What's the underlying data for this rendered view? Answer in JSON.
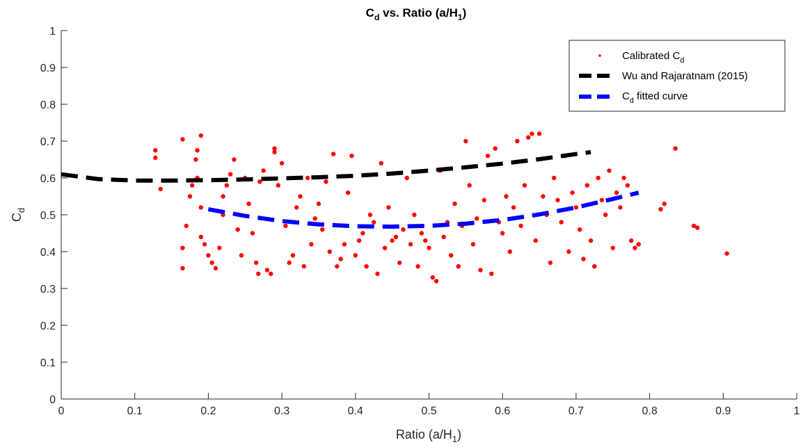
{
  "chart_data": {
    "type": "scatter",
    "title": {
      "main": "C",
      "sub": "d",
      "mid": " vs. Ratio (a/H",
      "sub2": "1",
      "end": ")"
    },
    "xlabel": {
      "main": "Ratio (a/H",
      "sub": "1",
      "end": ")"
    },
    "ylabel": {
      "main": "C",
      "sub": "d"
    },
    "xlim": [
      0,
      1
    ],
    "ylim": [
      0,
      1
    ],
    "xticks": [
      "0",
      "0.1",
      "0.2",
      "0.3",
      "0.4",
      "0.5",
      "0.6",
      "0.7",
      "0.8",
      "0.9",
      "1"
    ],
    "yticks": [
      "0",
      "0.1",
      "0.2",
      "0.3",
      "0.4",
      "0.5",
      "0.6",
      "0.7",
      "0.8",
      "0.9",
      "1"
    ],
    "grid": false,
    "legend_position": "top-right",
    "series": [
      {
        "name": "Calibrated C",
        "name_sub": "d",
        "style": "markers",
        "color": "#ff0000",
        "points": [
          [
            0.128,
            0.675
          ],
          [
            0.128,
            0.655
          ],
          [
            0.135,
            0.57
          ],
          [
            0.165,
            0.705
          ],
          [
            0.19,
            0.715
          ],
          [
            0.185,
            0.675
          ],
          [
            0.183,
            0.65
          ],
          [
            0.165,
            0.41
          ],
          [
            0.165,
            0.355
          ],
          [
            0.17,
            0.47
          ],
          [
            0.175,
            0.55
          ],
          [
            0.178,
            0.58
          ],
          [
            0.185,
            0.6
          ],
          [
            0.19,
            0.52
          ],
          [
            0.19,
            0.44
          ],
          [
            0.195,
            0.42
          ],
          [
            0.2,
            0.39
          ],
          [
            0.205,
            0.37
          ],
          [
            0.21,
            0.355
          ],
          [
            0.215,
            0.41
          ],
          [
            0.22,
            0.5
          ],
          [
            0.22,
            0.55
          ],
          [
            0.225,
            0.58
          ],
          [
            0.23,
            0.61
          ],
          [
            0.235,
            0.65
          ],
          [
            0.24,
            0.46
          ],
          [
            0.245,
            0.39
          ],
          [
            0.25,
            0.6
          ],
          [
            0.255,
            0.53
          ],
          [
            0.26,
            0.45
          ],
          [
            0.265,
            0.37
          ],
          [
            0.268,
            0.34
          ],
          [
            0.27,
            0.59
          ],
          [
            0.275,
            0.62
          ],
          [
            0.28,
            0.35
          ],
          [
            0.285,
            0.34
          ],
          [
            0.29,
            0.68
          ],
          [
            0.29,
            0.67
          ],
          [
            0.295,
            0.58
          ],
          [
            0.3,
            0.64
          ],
          [
            0.305,
            0.47
          ],
          [
            0.31,
            0.37
          ],
          [
            0.315,
            0.39
          ],
          [
            0.32,
            0.52
          ],
          [
            0.325,
            0.55
          ],
          [
            0.33,
            0.36
          ],
          [
            0.335,
            0.6
          ],
          [
            0.34,
            0.42
          ],
          [
            0.345,
            0.49
          ],
          [
            0.35,
            0.53
          ],
          [
            0.355,
            0.46
          ],
          [
            0.36,
            0.59
          ],
          [
            0.365,
            0.4
          ],
          [
            0.37,
            0.665
          ],
          [
            0.375,
            0.36
          ],
          [
            0.38,
            0.38
          ],
          [
            0.385,
            0.42
          ],
          [
            0.39,
            0.56
          ],
          [
            0.395,
            0.66
          ],
          [
            0.4,
            0.39
          ],
          [
            0.405,
            0.43
          ],
          [
            0.41,
            0.45
          ],
          [
            0.415,
            0.36
          ],
          [
            0.42,
            0.5
          ],
          [
            0.425,
            0.48
          ],
          [
            0.43,
            0.34
          ],
          [
            0.435,
            0.64
          ],
          [
            0.44,
            0.41
          ],
          [
            0.445,
            0.52
          ],
          [
            0.45,
            0.43
          ],
          [
            0.455,
            0.44
          ],
          [
            0.46,
            0.37
          ],
          [
            0.465,
            0.46
          ],
          [
            0.47,
            0.6
          ],
          [
            0.475,
            0.42
          ],
          [
            0.48,
            0.5
          ],
          [
            0.485,
            0.36
          ],
          [
            0.49,
            0.45
          ],
          [
            0.495,
            0.43
          ],
          [
            0.5,
            0.41
          ],
          [
            0.505,
            0.33
          ],
          [
            0.51,
            0.32
          ],
          [
            0.515,
            0.62
          ],
          [
            0.52,
            0.44
          ],
          [
            0.525,
            0.48
          ],
          [
            0.53,
            0.39
          ],
          [
            0.535,
            0.53
          ],
          [
            0.54,
            0.36
          ],
          [
            0.545,
            0.47
          ],
          [
            0.55,
            0.7
          ],
          [
            0.555,
            0.58
          ],
          [
            0.56,
            0.42
          ],
          [
            0.565,
            0.49
          ],
          [
            0.57,
            0.35
          ],
          [
            0.575,
            0.54
          ],
          [
            0.58,
            0.66
          ],
          [
            0.585,
            0.34
          ],
          [
            0.59,
            0.68
          ],
          [
            0.595,
            0.48
          ],
          [
            0.6,
            0.45
          ],
          [
            0.605,
            0.55
          ],
          [
            0.61,
            0.4
          ],
          [
            0.615,
            0.52
          ],
          [
            0.62,
            0.7
          ],
          [
            0.625,
            0.47
          ],
          [
            0.63,
            0.58
          ],
          [
            0.635,
            0.71
          ],
          [
            0.64,
            0.72
          ],
          [
            0.645,
            0.43
          ],
          [
            0.65,
            0.72
          ],
          [
            0.655,
            0.55
          ],
          [
            0.66,
            0.5
          ],
          [
            0.665,
            0.37
          ],
          [
            0.67,
            0.6
          ],
          [
            0.675,
            0.54
          ],
          [
            0.68,
            0.48
          ],
          [
            0.685,
            0.66
          ],
          [
            0.69,
            0.4
          ],
          [
            0.695,
            0.56
          ],
          [
            0.7,
            0.52
          ],
          [
            0.705,
            0.46
          ],
          [
            0.71,
            0.38
          ],
          [
            0.715,
            0.58
          ],
          [
            0.72,
            0.43
          ],
          [
            0.725,
            0.36
          ],
          [
            0.73,
            0.6
          ],
          [
            0.735,
            0.54
          ],
          [
            0.74,
            0.5
          ],
          [
            0.745,
            0.62
          ],
          [
            0.75,
            0.41
          ],
          [
            0.755,
            0.56
          ],
          [
            0.76,
            0.52
          ],
          [
            0.765,
            0.6
          ],
          [
            0.77,
            0.58
          ],
          [
            0.775,
            0.43
          ],
          [
            0.78,
            0.41
          ],
          [
            0.785,
            0.42
          ],
          [
            0.82,
            0.53
          ],
          [
            0.815,
            0.515
          ],
          [
            0.835,
            0.68
          ],
          [
            0.86,
            0.47
          ],
          [
            0.865,
            0.465
          ],
          [
            0.905,
            0.395
          ]
        ]
      },
      {
        "name": "Wu and Rajaratnam (2015)",
        "style": "dashed",
        "color": "#000000",
        "x": [
          0.0,
          0.05,
          0.1,
          0.15,
          0.2,
          0.25,
          0.3,
          0.35,
          0.4,
          0.45,
          0.5,
          0.55,
          0.6,
          0.65,
          0.7,
          0.72
        ],
        "y": [
          0.61,
          0.597,
          0.593,
          0.593,
          0.594,
          0.596,
          0.599,
          0.602,
          0.606,
          0.612,
          0.62,
          0.629,
          0.639,
          0.651,
          0.665,
          0.67
        ]
      },
      {
        "name": "C",
        "name_sub": "d",
        "name_end": " fitted curve",
        "style": "dashed",
        "color": "#0000ff",
        "x": [
          0.2,
          0.25,
          0.3,
          0.35,
          0.4,
          0.45,
          0.5,
          0.55,
          0.6,
          0.65,
          0.7,
          0.75,
          0.785
        ],
        "y": [
          0.515,
          0.497,
          0.483,
          0.474,
          0.469,
          0.468,
          0.47,
          0.476,
          0.486,
          0.501,
          0.52,
          0.543,
          0.56
        ]
      }
    ]
  }
}
